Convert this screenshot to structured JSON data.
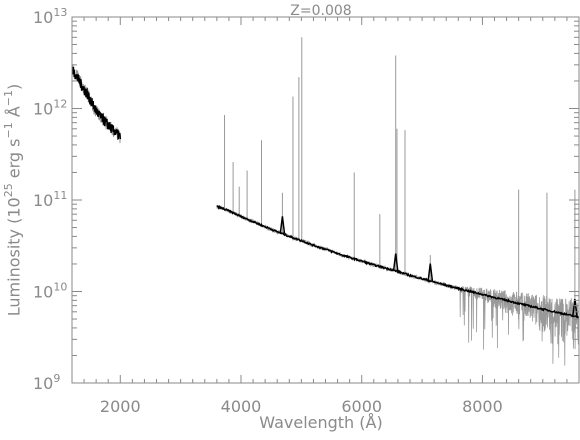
{
  "chart_data": {
    "type": "line",
    "title": "Z=0.008",
    "xlabel": "Wavelength (Å)",
    "ylabel": "Luminosity (10^25 erg s^-1 Å^-1)",
    "xlim": [
      1200,
      9600
    ],
    "ylim": [
      1000000000.0,
      10000000000000.0
    ],
    "yscale": "log",
    "grid": false,
    "x_ticks": [
      2000,
      4000,
      6000,
      8000
    ],
    "x_tick_labels": [
      "2000",
      "4000",
      "6000",
      "8000"
    ],
    "y_ticks": [
      1000000000.0,
      10000000000.0,
      100000000000.0,
      1000000000000.0,
      10000000000000.0
    ],
    "y_tick_labels": [
      {
        "base": "10",
        "exp": "9"
      },
      {
        "base": "10",
        "exp": "10"
      },
      {
        "base": "10",
        "exp": "11"
      },
      {
        "base": "10",
        "exp": "12"
      },
      {
        "base": "10",
        "exp": "13"
      }
    ],
    "colors": {
      "observed": "#999999",
      "model": "#000000",
      "axis": "#8a8a8a"
    },
    "series": [
      {
        "segment": "uv-observed",
        "x": [
          1200,
          1250,
          1300,
          1350,
          1400,
          1450,
          1500,
          1550,
          1600,
          1650,
          1700,
          1750,
          1800,
          1850,
          1900,
          1950,
          2000
        ],
        "y": [
          2900000000000.0,
          2400000000000.0,
          2300000000000.0,
          1900000000000.0,
          1600000000000.0,
          1500000000000.0,
          1250000000000.0,
          1050000000000.0,
          900000000000.0,
          850000000000.0,
          800000000000.0,
          720000000000.0,
          680000000000.0,
          630000000000.0,
          580000000000.0,
          540000000000.0,
          500000000000.0
        ]
      },
      {
        "segment": "uv-model",
        "x": [
          1200,
          1250,
          1300,
          1350,
          1400,
          1450,
          1500,
          1550,
          1600,
          1650,
          1700,
          1750,
          1800,
          1850,
          1900,
          1950,
          2000
        ],
        "y": [
          2700000000000.0,
          2400000000000.0,
          2100000000000.0,
          1850000000000.0,
          1600000000000.0,
          1450000000000.0,
          1250000000000.0,
          1100000000000.0,
          950000000000.0,
          850000000000.0,
          780000000000.0,
          720000000000.0,
          660000000000.0,
          610000000000.0,
          570000000000.0,
          530000000000.0,
          490000000000.0
        ]
      },
      {
        "segment": "optical-model",
        "x": [
          3600,
          3800,
          4000,
          4200,
          4400,
          4600,
          4800,
          5000,
          5200,
          5400,
          5600,
          5800,
          6000,
          6200,
          6400,
          6600,
          6800,
          7000,
          7200,
          7400,
          7600,
          7800,
          8000,
          8200,
          8400,
          8600,
          8800,
          9000,
          9200,
          9400,
          9600
        ],
        "y": [
          85000000000.0,
          76000000000.0,
          66000000000.0,
          58000000000.0,
          51000000000.0,
          45000000000.0,
          40000000000.0,
          36000000000.0,
          32000000000.0,
          29000000000.0,
          26000000000.0,
          23500000000.0,
          21500000000.0,
          19500000000.0,
          18000000000.0,
          16500000000.0,
          15000000000.0,
          13800000000.0,
          12700000000.0,
          11700000000.0,
          10800000000.0,
          10000000000.0,
          9300000000.0,
          8600000000.0,
          8000000000.0,
          7400000000.0,
          6900000000.0,
          6400000000.0,
          6000000000.0,
          5600000000.0,
          5200000000.0
        ]
      }
    ],
    "emission_lines": [
      {
        "x": 3727,
        "peak": 850000000000.0
      },
      {
        "x": 3869,
        "peak": 260000000000.0
      },
      {
        "x": 3970,
        "peak": 140000000000.0
      },
      {
        "x": 4101,
        "peak": 210000000000.0
      },
      {
        "x": 4340,
        "peak": 450000000000.0
      },
      {
        "x": 4686,
        "peak": 120000000000.0
      },
      {
        "x": 4861,
        "peak": 1350000000000.0
      },
      {
        "x": 4959,
        "peak": 2200000000000.0
      },
      {
        "x": 5007,
        "peak": 6000000000000.0
      },
      {
        "x": 5876,
        "peak": 200000000000.0
      },
      {
        "x": 6300,
        "peak": 70000000000.0
      },
      {
        "x": 6563,
        "peak": 3800000000000.0
      },
      {
        "x": 6584,
        "peak": 600000000000.0
      },
      {
        "x": 6717,
        "peak": 580000000000.0
      },
      {
        "x": 7136,
        "peak": 25000000000.0
      },
      {
        "x": 8600,
        "peak": 130000000000.0
      },
      {
        "x": 9069,
        "peak": 120000000000.0
      },
      {
        "x": 9532,
        "peak": 130000000000.0
      }
    ]
  }
}
